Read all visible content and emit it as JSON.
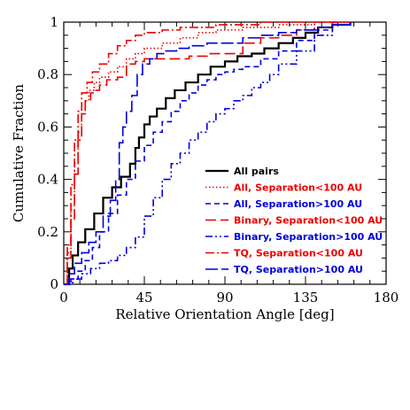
{
  "chart_data": {
    "type": "line",
    "title": "",
    "xlabel": "Relative Orientation Angle [deg]",
    "ylabel": "Cumulative Fraction",
    "xlim": [
      0,
      180
    ],
    "ylim": [
      0,
      1
    ],
    "xticks": [
      0,
      45,
      90,
      135,
      180
    ],
    "xtick_labels": [
      "0",
      "45",
      "90",
      "135",
      "180"
    ],
    "yticks": [
      0,
      0.2,
      0.4,
      0.6,
      0.8,
      1
    ],
    "ytick_labels": [
      "0",
      "0.2",
      "0.4",
      "0.6",
      "0.8",
      "1"
    ],
    "grid": false,
    "legend_position": "lower-right",
    "series": [
      {
        "name": "All pairs",
        "color": "#000000",
        "dash": "solid",
        "x": [
          0,
          3,
          5,
          8,
          12,
          17,
          22,
          27,
          32,
          37,
          40,
          42,
          45,
          48,
          52,
          57,
          62,
          68,
          75,
          82,
          90,
          97,
          105,
          112,
          120,
          128,
          135,
          142,
          150,
          160
        ],
        "y": [
          0,
          0.06,
          0.11,
          0.16,
          0.21,
          0.27,
          0.33,
          0.37,
          0.41,
          0.46,
          0.52,
          0.56,
          0.61,
          0.64,
          0.67,
          0.71,
          0.74,
          0.77,
          0.8,
          0.83,
          0.85,
          0.87,
          0.88,
          0.9,
          0.92,
          0.94,
          0.96,
          0.98,
          0.99,
          1.0
        ]
      },
      {
        "name": "All, Separation<100 AU",
        "color": "#ee0000",
        "dash": "dotted",
        "x": [
          0,
          2,
          4,
          6,
          8,
          10,
          12,
          14,
          17,
          20,
          25,
          30,
          35,
          40,
          45,
          55,
          65,
          75,
          85,
          100,
          120,
          140,
          160
        ],
        "y": [
          0,
          0.12,
          0.3,
          0.46,
          0.58,
          0.65,
          0.7,
          0.74,
          0.77,
          0.79,
          0.81,
          0.83,
          0.86,
          0.88,
          0.9,
          0.92,
          0.94,
          0.96,
          0.97,
          0.98,
          0.99,
          1.0,
          1.0
        ]
      },
      {
        "name": "All, Separation>100 AU",
        "color": "#0000dd",
        "dash": "dashed",
        "x": [
          0,
          4,
          8,
          12,
          16,
          20,
          25,
          30,
          35,
          40,
          45,
          50,
          55,
          60,
          65,
          70,
          75,
          80,
          85,
          90,
          95,
          100,
          110,
          120,
          130,
          140,
          150,
          160
        ],
        "y": [
          0,
          0.02,
          0.05,
          0.09,
          0.14,
          0.2,
          0.27,
          0.34,
          0.4,
          0.47,
          0.53,
          0.58,
          0.62,
          0.66,
          0.7,
          0.73,
          0.76,
          0.78,
          0.8,
          0.81,
          0.82,
          0.83,
          0.86,
          0.89,
          0.93,
          0.97,
          0.99,
          1.0
        ]
      },
      {
        "name": "Binary, Separation<100 AU",
        "color": "#ee0000",
        "dash": "longdash",
        "x": [
          0,
          2,
          4,
          6,
          8,
          10,
          12,
          15,
          18,
          20,
          24,
          28,
          30,
          35,
          40,
          45,
          50,
          60,
          70,
          80,
          90,
          100,
          110,
          120,
          130,
          140,
          150,
          160
        ],
        "y": [
          0,
          0.1,
          0.25,
          0.42,
          0.55,
          0.65,
          0.7,
          0.73,
          0.74,
          0.76,
          0.78,
          0.78,
          0.79,
          0.84,
          0.85,
          0.86,
          0.86,
          0.86,
          0.87,
          0.88,
          0.88,
          0.92,
          0.94,
          0.95,
          0.97,
          0.98,
          1.0,
          1.0
        ]
      },
      {
        "name": "Binary, Separation>100 AU",
        "color": "#0000dd",
        "dash": "dashdotdot",
        "x": [
          0,
          5,
          10,
          15,
          20,
          25,
          30,
          35,
          40,
          45,
          50,
          55,
          60,
          65,
          70,
          75,
          80,
          85,
          90,
          95,
          100,
          105,
          110,
          115,
          120,
          130,
          140,
          150,
          160
        ],
        "y": [
          0,
          0.02,
          0.04,
          0.06,
          0.08,
          0.09,
          0.11,
          0.14,
          0.18,
          0.26,
          0.33,
          0.4,
          0.46,
          0.5,
          0.55,
          0.58,
          0.62,
          0.65,
          0.67,
          0.7,
          0.72,
          0.75,
          0.77,
          0.8,
          0.84,
          0.89,
          0.95,
          0.99,
          1.0
        ]
      },
      {
        "name": "TQ, Separation<100 AU",
        "color": "#ee0000",
        "dash": "dashdot",
        "x": [
          0,
          2,
          4,
          6,
          8,
          10,
          13,
          16,
          20,
          25,
          30,
          35,
          40,
          45,
          55,
          65,
          75,
          85,
          95,
          110,
          125,
          140,
          155
        ],
        "y": [
          0,
          0.15,
          0.38,
          0.55,
          0.66,
          0.73,
          0.77,
          0.81,
          0.84,
          0.88,
          0.91,
          0.93,
          0.95,
          0.96,
          0.97,
          0.98,
          0.98,
          0.99,
          0.99,
          1.0,
          1.0,
          1.0,
          1.0
        ]
      },
      {
        "name": "TQ, Separation>100 AU",
        "color": "#0000dd",
        "dash": "dashlong",
        "x": [
          0,
          3,
          6,
          10,
          14,
          18,
          22,
          26,
          29,
          31,
          33,
          35,
          38,
          41,
          44,
          48,
          52,
          57,
          63,
          70,
          80,
          90,
          100,
          110,
          120,
          130,
          140,
          150,
          160
        ],
        "y": [
          0,
          0.04,
          0.08,
          0.12,
          0.16,
          0.2,
          0.26,
          0.32,
          0.4,
          0.54,
          0.6,
          0.66,
          0.72,
          0.8,
          0.84,
          0.86,
          0.88,
          0.89,
          0.9,
          0.91,
          0.92,
          0.92,
          0.94,
          0.95,
          0.96,
          0.97,
          0.98,
          0.99,
          1.0
        ]
      }
    ]
  }
}
